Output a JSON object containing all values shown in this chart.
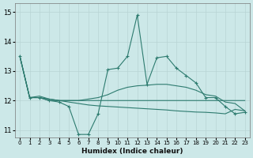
{
  "xlabel": "Humidex (Indice chaleur)",
  "background_color": "#cce8e8",
  "grid_color": "#b8d4d4",
  "line_color": "#2d7b6f",
  "xlim": [
    -0.5,
    23.5
  ],
  "ylim": [
    10.75,
    15.3
  ],
  "yticks": [
    11,
    12,
    13,
    14,
    15
  ],
  "xticks": [
    0,
    1,
    2,
    3,
    4,
    5,
    6,
    7,
    8,
    9,
    10,
    11,
    12,
    13,
    14,
    15,
    16,
    17,
    18,
    19,
    20,
    21,
    22,
    23
  ],
  "line1": [
    13.5,
    12.1,
    12.1,
    12.0,
    11.95,
    11.8,
    10.85,
    10.85,
    11.55,
    13.05,
    13.1,
    13.5,
    14.9,
    12.55,
    13.45,
    13.5,
    13.1,
    12.85,
    12.6,
    12.1,
    12.1,
    11.8,
    11.55,
    11.6
  ],
  "line2": [
    13.5,
    12.1,
    12.15,
    12.05,
    12.0,
    12.0,
    12.0,
    12.05,
    12.1,
    12.2,
    12.35,
    12.45,
    12.5,
    12.52,
    12.55,
    12.55,
    12.5,
    12.45,
    12.35,
    12.2,
    12.15,
    11.95,
    11.9,
    11.65
  ],
  "line3": [
    13.5,
    12.1,
    12.1,
    12.0,
    12.0,
    12.0,
    12.0,
    12.0,
    12.0,
    12.0,
    12.0,
    12.0,
    12.0,
    12.0,
    12.0,
    12.0,
    12.0,
    12.0,
    12.0,
    12.0,
    12.0,
    12.0,
    12.0,
    12.0
  ],
  "line4": [
    13.5,
    12.1,
    12.1,
    12.05,
    12.0,
    11.95,
    11.9,
    11.85,
    11.82,
    11.8,
    11.78,
    11.76,
    11.74,
    11.72,
    11.7,
    11.68,
    11.65,
    11.63,
    11.61,
    11.6,
    11.58,
    11.55,
    11.7,
    11.65
  ]
}
